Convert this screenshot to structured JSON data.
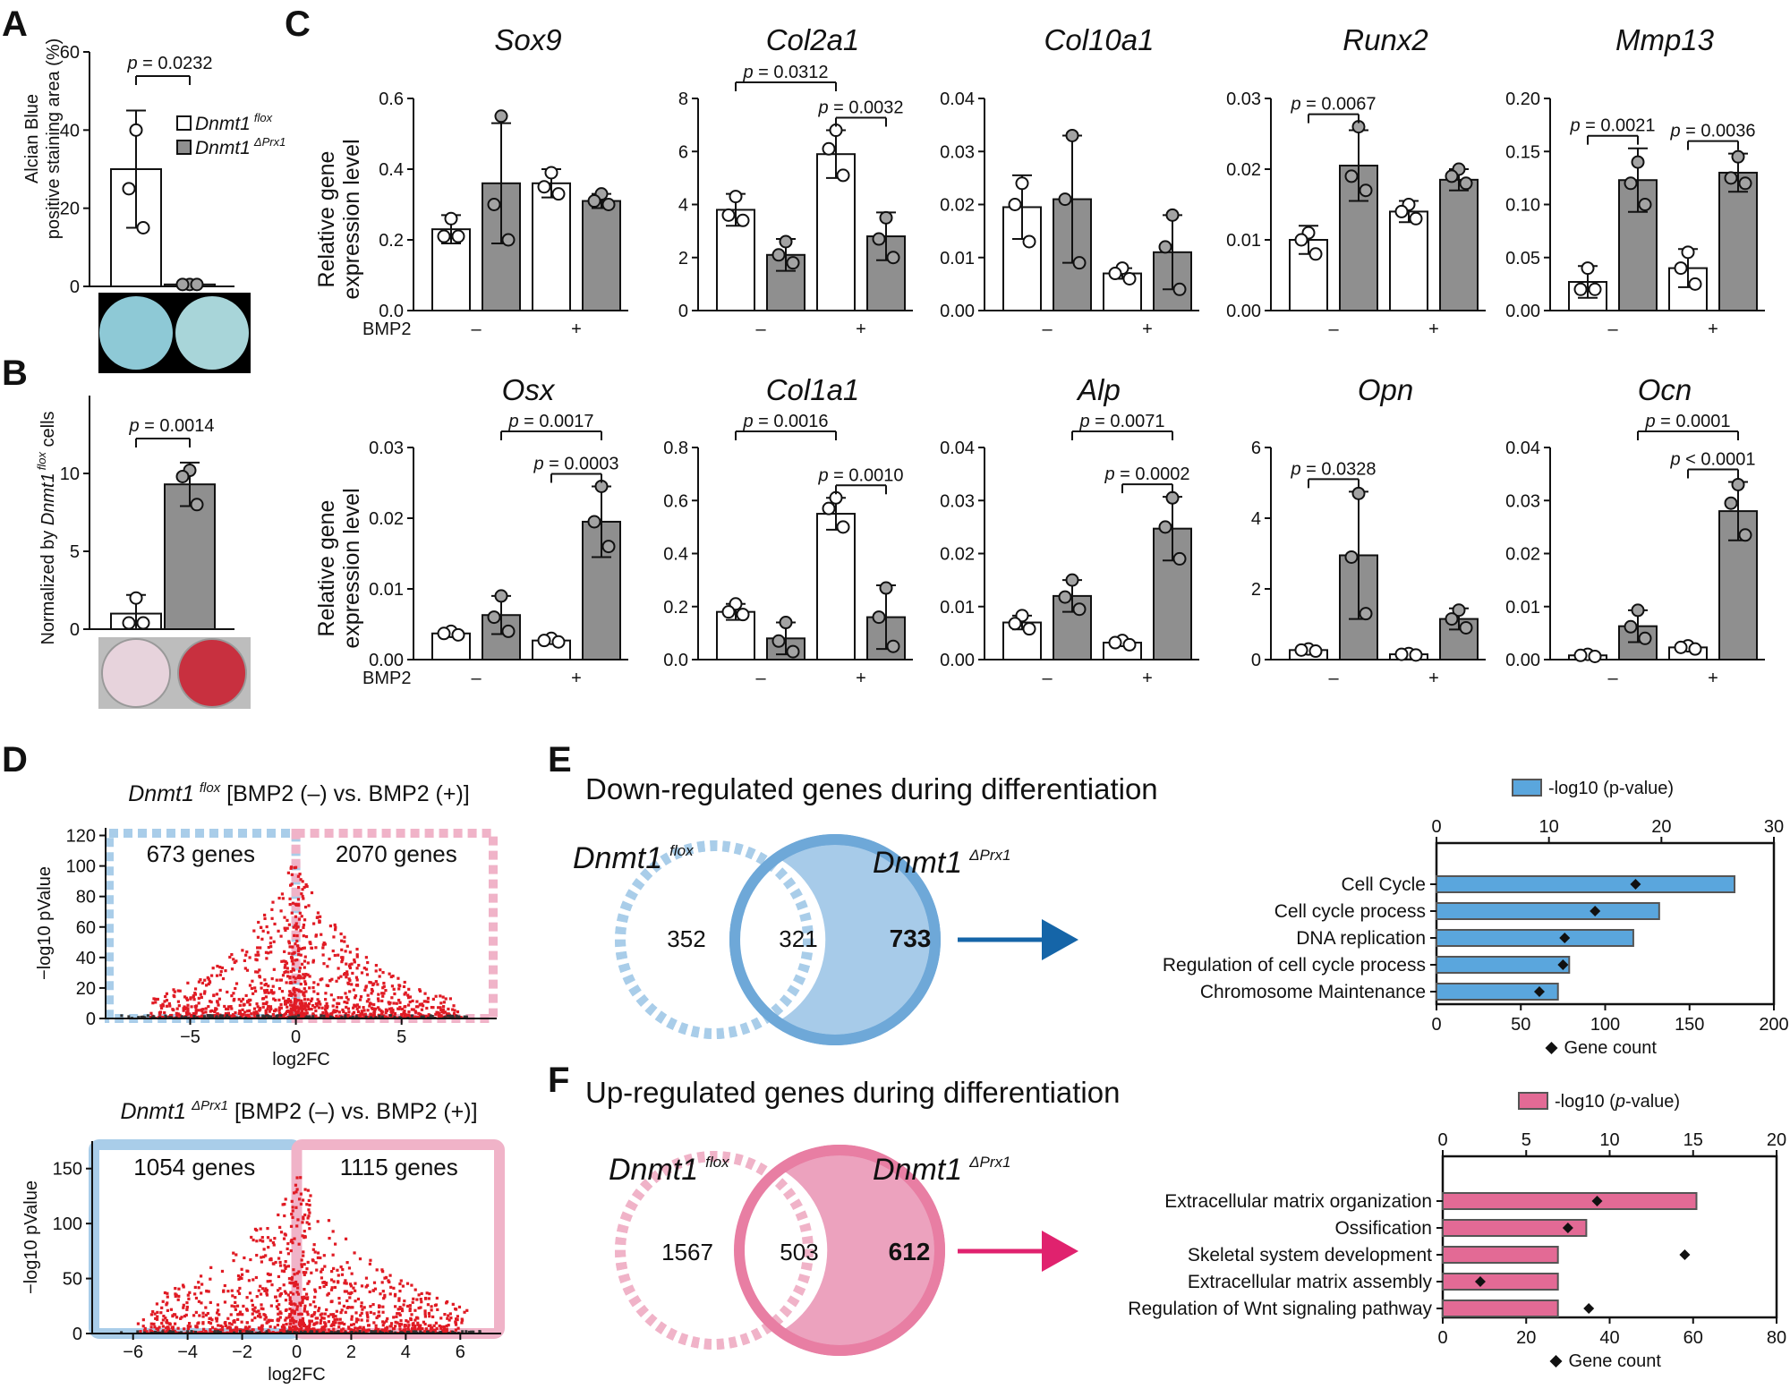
{
  "panels": {
    "A": "A",
    "B": "B",
    "C": "C",
    "D": "D",
    "E": "E",
    "F": "F"
  },
  "panelA": {
    "ylabel": [
      "Alcian Blue",
      "positive staining area (%)"
    ],
    "yticks": [
      0,
      20,
      40,
      60
    ],
    "ylim": [
      0,
      60
    ],
    "legend": [
      {
        "name": "Dnmt1",
        "sup": "flox",
        "color": "#ffffff"
      },
      {
        "name": "Dnmt1",
        "sup": "ΔPrx1",
        "color": "#8f8f8f"
      }
    ],
    "bars": [
      {
        "mean": 30,
        "sd": 15,
        "pts": [
          40,
          25,
          15
        ]
      },
      {
        "mean": 0.5,
        "sd": 0,
        "pts": [
          0.5,
          0.5,
          0.5
        ]
      }
    ],
    "p": "p = 0.0232",
    "dish_colors": [
      "#8ec9d6",
      "#a8d5d9"
    ]
  },
  "panelB": {
    "ylabel_pre": "Normalized by ",
    "ylabel_gene": "Dnmt1",
    "ylabel_sup": "flox",
    "ylabel_post": " cells",
    "yticks": [
      0,
      5,
      10
    ],
    "ylim": [
      0,
      15
    ],
    "bars": [
      {
        "mean": 1,
        "sd": 1.2,
        "pts": [
          2,
          0.4,
          0.4
        ]
      },
      {
        "mean": 9.3,
        "sd": 1.4,
        "pts": [
          10.2,
          9.8,
          8
        ]
      }
    ],
    "p": "p = 0.0014",
    "dish_colors": [
      "#e7d3dc",
      "#c8303f"
    ]
  },
  "panelC": {
    "ylabel": [
      "Relative gene",
      "expression level"
    ],
    "bmp_label": "BMP2",
    "minus": "–",
    "plus": "+",
    "genes": [
      {
        "name": "Sox9",
        "ylim": [
          0,
          0.6
        ],
        "ticks": [
          "0.0",
          "0.2",
          "0.4",
          "0.6"
        ],
        "tickvals": [
          0,
          0.2,
          0.4,
          0.6
        ],
        "bars": [
          {
            "m": 0.23,
            "sd": 0.04,
            "pts": [
              0.26,
              0.21,
              0.21
            ]
          },
          {
            "m": 0.36,
            "sd": 0.17,
            "pts": [
              0.55,
              0.3,
              0.2
            ]
          },
          {
            "m": 0.36,
            "sd": 0.04,
            "pts": [
              0.39,
              0.35,
              0.33
            ]
          },
          {
            "m": 0.31,
            "sd": 0.02,
            "pts": [
              0.33,
              0.31,
              0.3
            ]
          }
        ],
        "p": []
      },
      {
        "name": "Col2a1",
        "ylim": [
          0,
          8
        ],
        "ticks": [
          "0",
          "2",
          "4",
          "6",
          "8"
        ],
        "tickvals": [
          0,
          2,
          4,
          6,
          8
        ],
        "bars": [
          {
            "m": 3.8,
            "sd": 0.6,
            "pts": [
              4.3,
              3.6,
              3.4
            ]
          },
          {
            "m": 2.1,
            "sd": 0.6,
            "pts": [
              2.6,
              2.1,
              1.8
            ]
          },
          {
            "m": 5.9,
            "sd": 0.9,
            "pts": [
              6.8,
              6.1,
              5.1
            ]
          },
          {
            "m": 2.8,
            "sd": 0.9,
            "pts": [
              3.5,
              2.7,
              2
            ]
          }
        ],
        "p": [
          {
            "a": 0,
            "b": 2,
            "text": "p = 0.0312",
            "level": 0
          },
          {
            "a": 2,
            "b": 3,
            "text": "p = 0.0032",
            "level": 1
          }
        ]
      },
      {
        "name": "Col10a1",
        "ylim": [
          0,
          0.04
        ],
        "ticks": [
          "0.00",
          "0.01",
          "0.02",
          "0.03",
          "0.04"
        ],
        "tickvals": [
          0,
          0.01,
          0.02,
          0.03,
          0.04
        ],
        "bars": [
          {
            "m": 0.0195,
            "sd": 0.006,
            "pts": [
              0.024,
              0.02,
              0.013
            ]
          },
          {
            "m": 0.021,
            "sd": 0.012,
            "pts": [
              0.033,
              0.021,
              0.009
            ]
          },
          {
            "m": 0.007,
            "sd": 0.001,
            "pts": [
              0.008,
              0.007,
              0.006
            ]
          },
          {
            "m": 0.011,
            "sd": 0.007,
            "pts": [
              0.018,
              0.012,
              0.004
            ]
          }
        ],
        "p": []
      },
      {
        "name": "Runx2",
        "ylim": [
          0,
          0.03
        ],
        "ticks": [
          "0.00",
          "0.01",
          "0.02",
          "0.03"
        ],
        "tickvals": [
          0,
          0.01,
          0.02,
          0.03
        ],
        "bars": [
          {
            "m": 0.01,
            "sd": 0.002,
            "pts": [
              0.011,
              0.01,
              0.008
            ]
          },
          {
            "m": 0.0205,
            "sd": 0.005,
            "pts": [
              0.026,
              0.019,
              0.017
            ]
          },
          {
            "m": 0.014,
            "sd": 0.0015,
            "pts": [
              0.015,
              0.014,
              0.013
            ]
          },
          {
            "m": 0.0185,
            "sd": 0.0015,
            "pts": [
              0.02,
              0.019,
              0.018
            ]
          }
        ],
        "p": [
          {
            "a": 0,
            "b": 1,
            "text": "p = 0.0067",
            "level": 0
          }
        ]
      },
      {
        "name": "Mmp13",
        "ylim": [
          0,
          0.2
        ],
        "ticks": [
          "0.00",
          "0.05",
          "0.10",
          "0.15",
          "0.20"
        ],
        "tickvals": [
          0,
          0.05,
          0.1,
          0.15,
          0.2
        ],
        "bars": [
          {
            "m": 0.027,
            "sd": 0.015,
            "pts": [
              0.04,
              0.02,
              0.02
            ]
          },
          {
            "m": 0.123,
            "sd": 0.03,
            "pts": [
              0.14,
              0.12,
              0.1
            ]
          },
          {
            "m": 0.04,
            "sd": 0.018,
            "pts": [
              0.055,
              0.04,
              0.025
            ]
          },
          {
            "m": 0.13,
            "sd": 0.018,
            "pts": [
              0.145,
              0.125,
              0.12
            ]
          }
        ],
        "p": [
          {
            "a": 0,
            "b": 1,
            "text": "p = 0.0021",
            "level": 0
          },
          {
            "a": 2,
            "b": 3,
            "text": "p = 0.0036",
            "level": 0
          }
        ]
      },
      {
        "name": "Osx",
        "ylim": [
          0,
          0.03
        ],
        "ticks": [
          "0.00",
          "0.01",
          "0.02",
          "0.03"
        ],
        "tickvals": [
          0,
          0.01,
          0.02,
          0.03
        ],
        "bars": [
          {
            "m": 0.0037,
            "sd": 0.0005,
            "pts": [
              0.004,
              0.0037,
              0.0035
            ]
          },
          {
            "m": 0.0063,
            "sd": 0.0027,
            "pts": [
              0.009,
              0.006,
              0.004
            ]
          },
          {
            "m": 0.0027,
            "sd": 0.0004,
            "pts": [
              0.003,
              0.0027,
              0.0025
            ]
          },
          {
            "m": 0.0195,
            "sd": 0.005,
            "pts": [
              0.0245,
              0.0195,
              0.016
            ]
          }
        ],
        "p": [
          {
            "a": 1,
            "b": 3,
            "text": "p = 0.0017",
            "level": 0
          },
          {
            "a": 2,
            "b": 3,
            "text": "p = 0.0003",
            "level": 1
          }
        ]
      },
      {
        "name": "Col1a1",
        "ylim": [
          0,
          0.8
        ],
        "ticks": [
          "0.0",
          "0.2",
          "0.4",
          "0.6",
          "0.8"
        ],
        "tickvals": [
          0,
          0.2,
          0.4,
          0.6,
          0.8
        ],
        "bars": [
          {
            "m": 0.18,
            "sd": 0.03,
            "pts": [
              0.21,
              0.18,
              0.17
            ]
          },
          {
            "m": 0.08,
            "sd": 0.06,
            "pts": [
              0.14,
              0.07,
              0.03
            ]
          },
          {
            "m": 0.55,
            "sd": 0.06,
            "pts": [
              0.61,
              0.57,
              0.5
            ]
          },
          {
            "m": 0.16,
            "sd": 0.12,
            "pts": [
              0.27,
              0.16,
              0.05
            ]
          }
        ],
        "p": [
          {
            "a": 0,
            "b": 2,
            "text": "p = 0.0016",
            "level": 0
          },
          {
            "a": 2,
            "b": 3,
            "text": "p = 0.0010",
            "level": 1
          }
        ]
      },
      {
        "name": "Alp",
        "ylim": [
          0,
          0.04
        ],
        "ticks": [
          "0.00",
          "0.01",
          "0.02",
          "0.03",
          "0.04"
        ],
        "tickvals": [
          0,
          0.01,
          0.02,
          0.03,
          0.04
        ],
        "bars": [
          {
            "m": 0.007,
            "sd": 0.0013,
            "pts": [
              0.0083,
              0.0068,
              0.0058
            ]
          },
          {
            "m": 0.012,
            "sd": 0.003,
            "pts": [
              0.015,
              0.0118,
              0.0095
            ]
          },
          {
            "m": 0.0032,
            "sd": 0.0005,
            "pts": [
              0.0036,
              0.0032,
              0.0028
            ]
          },
          {
            "m": 0.0247,
            "sd": 0.006,
            "pts": [
              0.0305,
              0.025,
              0.019
            ]
          }
        ],
        "p": [
          {
            "a": 1,
            "b": 3,
            "text": "p = 0.0071",
            "level": 0
          },
          {
            "a": 2,
            "b": 3,
            "text": "p = 0.0002",
            "level": 1
          }
        ]
      },
      {
        "name": "Opn",
        "ylim": [
          0,
          6
        ],
        "ticks": [
          "0",
          "2",
          "4",
          "6"
        ],
        "tickvals": [
          0,
          2,
          4,
          6
        ],
        "bars": [
          {
            "m": 0.27,
            "sd": 0.05,
            "pts": [
              0.3,
              0.27,
              0.24
            ]
          },
          {
            "m": 2.95,
            "sd": 1.8,
            "pts": [
              4.7,
              2.9,
              1.3
            ]
          },
          {
            "m": 0.15,
            "sd": 0.03,
            "pts": [
              0.17,
              0.15,
              0.13
            ]
          },
          {
            "m": 1.15,
            "sd": 0.3,
            "pts": [
              1.4,
              1.15,
              0.9
            ]
          }
        ],
        "p": [
          {
            "a": 0,
            "b": 1,
            "text": "p = 0.0328",
            "level": 0
          }
        ]
      },
      {
        "name": "Ocn",
        "ylim": [
          0,
          0.04
        ],
        "ticks": [
          "0.00",
          "0.01",
          "0.02",
          "0.03",
          "0.04"
        ],
        "tickvals": [
          0,
          0.01,
          0.02,
          0.03,
          0.04
        ],
        "bars": [
          {
            "m": 0.0008,
            "sd": 0.0003,
            "pts": [
              0.001,
              0.0008,
              0.0006
            ]
          },
          {
            "m": 0.0063,
            "sd": 0.003,
            "pts": [
              0.0093,
              0.0062,
              0.004
            ]
          },
          {
            "m": 0.0023,
            "sd": 0.0003,
            "pts": [
              0.0026,
              0.0023,
              0.002
            ]
          },
          {
            "m": 0.028,
            "sd": 0.0055,
            "pts": [
              0.033,
              0.0295,
              0.0235
            ]
          }
        ],
        "p": [
          {
            "a": 1,
            "b": 3,
            "text": "p = 0.0001",
            "level": 0
          },
          {
            "a": 2,
            "b": 3,
            "text": "p < 0.0001",
            "level": 1
          }
        ]
      }
    ]
  },
  "panelD": {
    "top": {
      "title_gene": "Dnmt1",
      "title_sup": "flox",
      "title_rest": " [BMP2 (–) vs. BMP2 (+)]",
      "ylabel": "−log10 pValue",
      "xlabel": "log2FC",
      "xticks": [
        -5,
        0,
        5
      ],
      "yticks": [
        0,
        20,
        40,
        60,
        80,
        100,
        120
      ],
      "xlim": [
        -9,
        9.5
      ],
      "ylim": [
        0,
        125
      ],
      "left_count": "673 genes",
      "right_count": "2070 genes"
    },
    "bottom": {
      "title_gene": "Dnmt1",
      "title_sup": "ΔPrx1",
      "title_rest": " [BMP2 (–) vs. BMP2 (+)]",
      "ylabel": "−log10 pValue",
      "xlabel": "log2FC",
      "xticks": [
        -6,
        -4,
        -2,
        0,
        2,
        4,
        6
      ],
      "yticks": [
        0,
        50,
        100,
        150
      ],
      "xlim": [
        -7.5,
        7.5
      ],
      "ylim": [
        0,
        175
      ],
      "left_count": "1054 genes",
      "right_count": "1115 genes"
    }
  },
  "panelE": {
    "title": "Down-regulated genes during differentiation",
    "title_color": "#1a73b8",
    "venn": {
      "left_gene": "Dnmt1",
      "left_sup": "flox",
      "right_gene": "Dnmt1",
      "right_sup": "ΔPrx1",
      "left_only": "352",
      "overlap": "321",
      "right_only": "733",
      "color": "#6ea8d8",
      "bold_color": "#1565a8"
    },
    "chart_data": {
      "type": "bar",
      "legend": "-log10 (p-value)",
      "xlabel": "Gene count",
      "top_ticks": [
        0,
        10,
        20,
        30
      ],
      "bottom_ticks": [
        0,
        50,
        100,
        150,
        200
      ],
      "top_lim": [
        0,
        30
      ],
      "bottom_lim": [
        0,
        200
      ],
      "categories": [
        "Cell Cycle",
        "Cell cycle process",
        "DNA replication",
        "Regulation of cell cycle process",
        "Chromosome Maintenance"
      ],
      "neglog10p": [
        26.5,
        19.8,
        17.5,
        11.8,
        10.8
      ],
      "gene_count": [
        118,
        94,
        76,
        75,
        61
      ]
    }
  },
  "panelF": {
    "title": "Up-regulated genes during differentiation",
    "title_color": "#e0226e",
    "venn": {
      "left_gene": "Dnmt1",
      "left_sup": "flox",
      "right_gene": "Dnmt1",
      "right_sup": "ΔPrx1",
      "left_only": "1567",
      "overlap": "503",
      "right_only": "612",
      "color": "#e87ea3",
      "bold_color": "#d81b60"
    },
    "chart_data": {
      "type": "bar",
      "legend_pre": "-log10 (",
      "legend_p": "p",
      "legend_post": "-value)",
      "xlabel": "Gene count",
      "top_ticks": [
        0,
        5,
        10,
        15,
        20
      ],
      "bottom_ticks": [
        0,
        20,
        40,
        60,
        80
      ],
      "top_lim": [
        0,
        20
      ],
      "bottom_lim": [
        0,
        80
      ],
      "categories": [
        "Extracellular matrix organization",
        "Ossification",
        "Skeletal system development",
        "Extracellular matrix assembly",
        "Regulation of Wnt signaling pathway"
      ],
      "neglog10p": [
        15.2,
        8.6,
        6.9,
        6.9,
        6.9
      ],
      "gene_count": [
        37,
        30,
        58,
        9,
        35
      ]
    }
  }
}
